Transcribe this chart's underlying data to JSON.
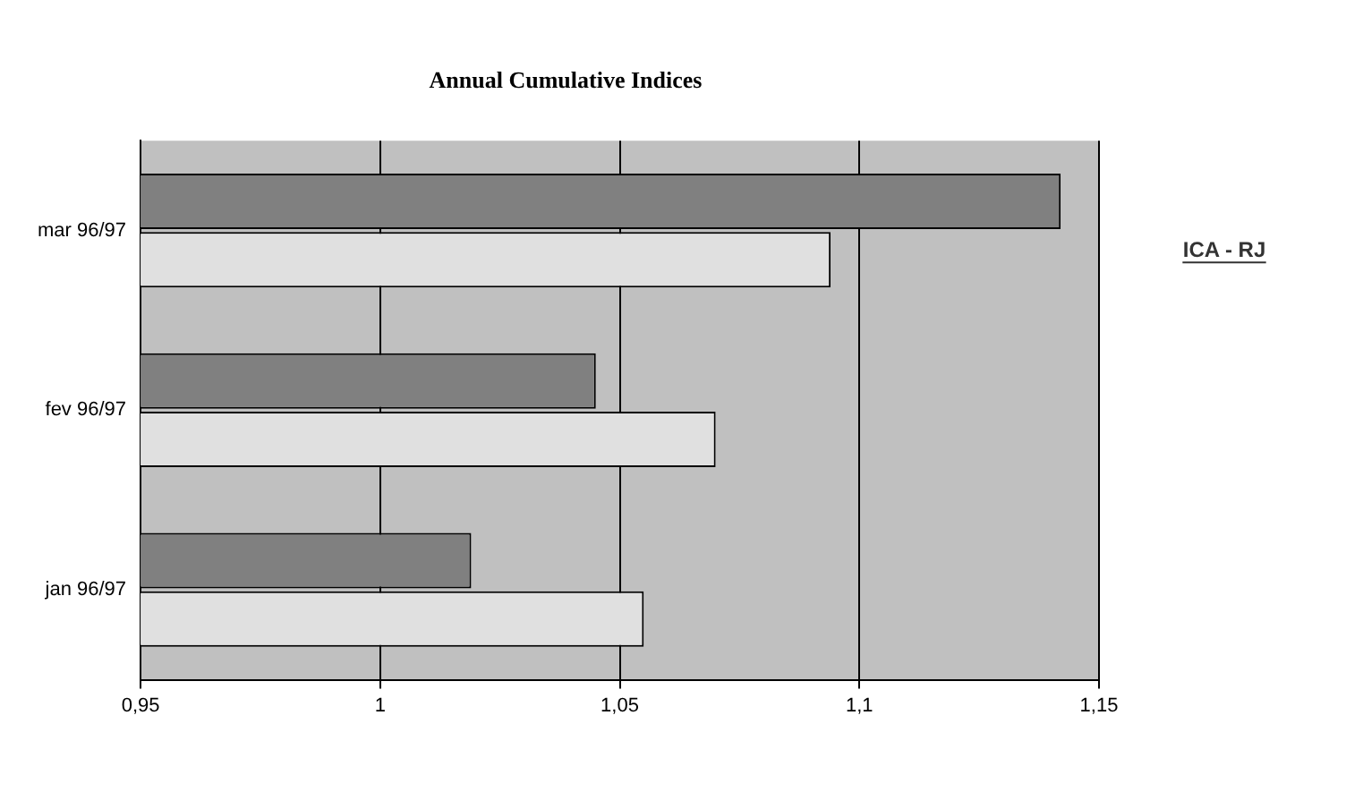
{
  "chart_data": {
    "type": "bar",
    "orientation": "horizontal",
    "title": "Annual Cumulative Indices",
    "categories": [
      "mar 96/97",
      "fev 96/97",
      "jan 96/97"
    ],
    "series": [
      {
        "color": "#808080",
        "values": [
          1.142,
          1.045,
          1.019
        ]
      },
      {
        "color": "#e0e0e0",
        "values": [
          1.094,
          1.07,
          1.055
        ]
      }
    ],
    "xlim": [
      0.95,
      1.15
    ],
    "xticks": [
      {
        "value": 0.95,
        "label": "0,95"
      },
      1,
      {
        "value": 1.05,
        "label": "1,05"
      },
      {
        "value": 1.1,
        "label": "1,1"
      },
      {
        "value": 1.15,
        "label": "1,15"
      }
    ],
    "grid": "x",
    "legend": false,
    "annotations": [
      "ICA - RJ"
    ]
  }
}
